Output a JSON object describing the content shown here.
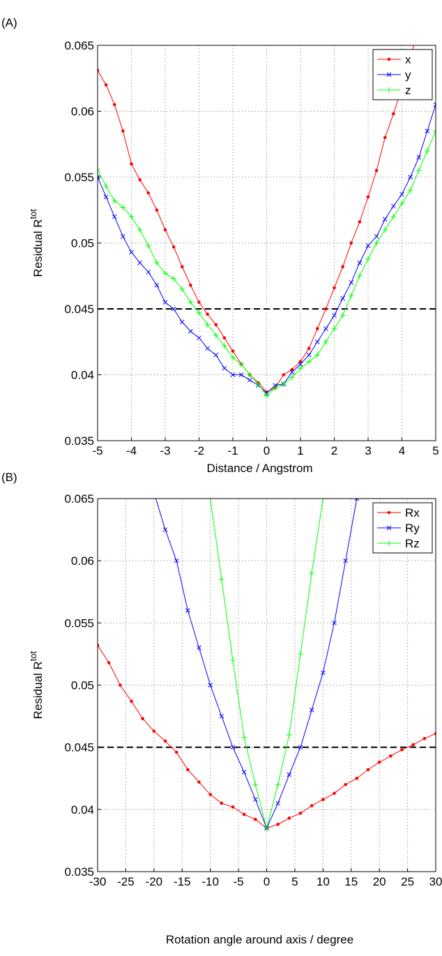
{
  "chart_data": [
    {
      "type": "line",
      "panel": "(A)",
      "xlabel": "Distance / Angstrom",
      "ylabel": "Residual R",
      "ylabel_superscript": "tot",
      "x": [
        -5,
        -4.75,
        -4.5,
        -4.25,
        -4,
        -3.75,
        -3.5,
        -3.25,
        -3,
        -2.75,
        -2.5,
        -2.25,
        -2,
        -1.75,
        -1.5,
        -1.25,
        -1,
        -0.75,
        -0.5,
        -0.25,
        0,
        0.25,
        0.5,
        0.75,
        1,
        1.25,
        1.5,
        1.75,
        2,
        2.25,
        2.5,
        2.75,
        3,
        3.25,
        3.5,
        3.75,
        4,
        4.25,
        4.5,
        4.75,
        5
      ],
      "series": [
        {
          "name": "x",
          "color": "#ff0000",
          "marker": "dot",
          "values": [
            0.0631,
            0.062,
            0.0605,
            0.0585,
            0.056,
            0.0548,
            0.0538,
            0.0525,
            0.051,
            0.0497,
            0.0482,
            0.0468,
            0.0455,
            0.0446,
            0.0438,
            0.0428,
            0.0418,
            0.0408,
            0.04,
            0.0394,
            0.0387,
            0.039,
            0.04,
            0.0404,
            0.041,
            0.042,
            0.0435,
            0.045,
            0.0466,
            0.0482,
            0.05,
            0.0516,
            0.0535,
            0.0555,
            0.058,
            0.0598,
            0.0618,
            0.064,
            0.0665,
            null,
            null
          ]
        },
        {
          "name": "y",
          "color": "#0000ff",
          "marker": "x",
          "values": [
            0.055,
            0.0535,
            0.052,
            0.0505,
            0.0493,
            0.0485,
            0.0478,
            0.0468,
            0.0455,
            0.045,
            0.044,
            0.0433,
            0.0428,
            0.042,
            0.0415,
            0.0405,
            0.04,
            0.04,
            0.0396,
            0.0392,
            0.0386,
            0.0392,
            0.0393,
            0.0402,
            0.0408,
            0.0415,
            0.0425,
            0.0435,
            0.0445,
            0.0458,
            0.047,
            0.0485,
            0.0498,
            0.0505,
            0.0518,
            0.0528,
            0.0537,
            0.055,
            0.0565,
            0.0585,
            0.0605
          ]
        },
        {
          "name": "z",
          "color": "#00ff00",
          "marker": "plus",
          "values": [
            0.0556,
            0.0543,
            0.0532,
            0.0527,
            0.052,
            0.051,
            0.0498,
            0.0485,
            0.0477,
            0.0473,
            0.0465,
            0.0455,
            0.0447,
            0.0438,
            0.043,
            0.0422,
            0.0413,
            0.0408,
            0.04,
            0.0393,
            0.0384,
            0.039,
            0.0393,
            0.0398,
            0.0405,
            0.041,
            0.0415,
            0.0425,
            0.0435,
            0.0445,
            0.046,
            0.0475,
            0.0488,
            0.05,
            0.051,
            0.052,
            0.053,
            0.054,
            0.0555,
            0.057,
            0.0585
          ]
        }
      ],
      "xlim": [
        -5,
        5
      ],
      "xticks": [
        -5,
        -4,
        -3,
        -2,
        -1,
        0,
        1,
        2,
        3,
        4,
        5
      ],
      "ylim": [
        0.035,
        0.065
      ],
      "yticks": [
        0.035,
        0.04,
        0.045,
        0.05,
        0.055,
        0.06,
        0.065
      ],
      "reference_line": 0.045,
      "grid": true,
      "legend": "upper right"
    },
    {
      "type": "line",
      "panel": "(B)",
      "xlabel": "Rotation angle around axis / degree",
      "ylabel": "Residual R",
      "ylabel_superscript": "tot",
      "x": [
        -30,
        -28,
        -26,
        -24,
        -22,
        -20,
        -18,
        -16,
        -14,
        -12,
        -10,
        -8,
        -6,
        -4,
        -2,
        0,
        2,
        4,
        6,
        8,
        10,
        12,
        14,
        16,
        18,
        20,
        22,
        24,
        26,
        28,
        30
      ],
      "series": [
        {
          "name": "Rx",
          "color": "#ff0000",
          "marker": "dot",
          "values": [
            0.0532,
            0.0518,
            0.05,
            0.0487,
            0.0473,
            0.0463,
            0.0455,
            0.0446,
            0.0432,
            0.0422,
            0.0412,
            0.0405,
            0.0402,
            0.0396,
            0.0392,
            0.0385,
            0.0388,
            0.0393,
            0.0397,
            0.0403,
            0.0408,
            0.0413,
            0.042,
            0.0425,
            0.0432,
            0.0438,
            0.0443,
            0.0448,
            0.0452,
            0.0457,
            0.0461
          ]
        },
        {
          "name": "Ry",
          "color": "#0000ff",
          "marker": "x",
          "values": [
            null,
            null,
            null,
            null,
            null,
            0.0655,
            0.0625,
            0.06,
            0.056,
            0.053,
            0.05,
            0.0475,
            0.045,
            0.043,
            0.0408,
            0.0385,
            0.0405,
            0.0428,
            0.045,
            0.048,
            0.051,
            0.055,
            0.06,
            0.065,
            null,
            null,
            null,
            null,
            null,
            null,
            null
          ]
        },
        {
          "name": "Rz",
          "color": "#00ff00",
          "marker": "plus",
          "values": [
            null,
            null,
            null,
            null,
            null,
            null,
            null,
            null,
            null,
            null,
            0.065,
            0.0585,
            0.052,
            0.0458,
            0.042,
            0.0385,
            0.042,
            0.046,
            0.0525,
            0.059,
            0.065,
            null,
            null,
            null,
            null,
            null,
            null,
            null,
            null,
            null,
            null
          ]
        }
      ],
      "xlim": [
        -30,
        30
      ],
      "xticks": [
        -30,
        -25,
        -20,
        -15,
        -10,
        -5,
        0,
        5,
        10,
        15,
        20,
        25,
        30
      ],
      "ylim": [
        0.035,
        0.065
      ],
      "yticks": [
        0.035,
        0.04,
        0.045,
        0.05,
        0.055,
        0.06,
        0.065
      ],
      "reference_line": 0.045,
      "grid": true,
      "legend": "upper right"
    }
  ]
}
